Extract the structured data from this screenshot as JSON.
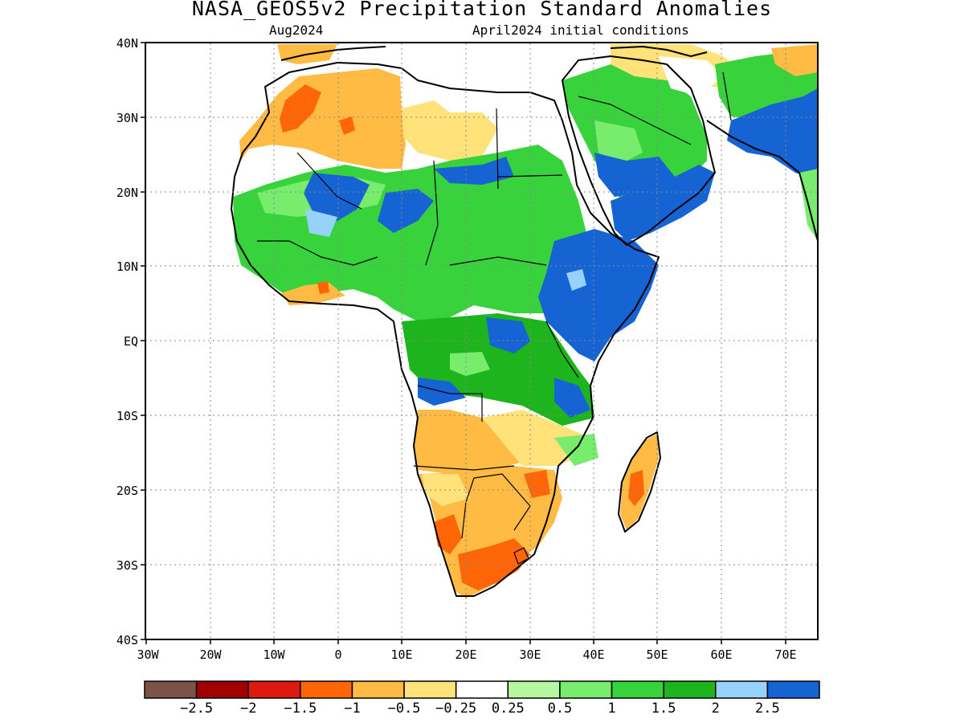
{
  "title": "NASA_GEOS5v2 Precipitation Standard Anomalies",
  "subtitle_left": "Aug2024",
  "subtitle_right": "April2024 initial conditions",
  "map": {
    "lat_labels": [
      "40N",
      "30N",
      "20N",
      "10N",
      "EQ",
      "10S",
      "20S",
      "30S",
      "40S"
    ],
    "lon_labels": [
      "30W",
      "20W",
      "10W",
      "0",
      "10E",
      "20E",
      "30E",
      "40E",
      "50E",
      "60E",
      "70E"
    ],
    "grid": "dotted",
    "region": "Africa, Middle East and South Asia (30W-75E, 40S-40N)"
  },
  "colorbar": {
    "colors": [
      "#7a5247",
      "#a00000",
      "#dd1a10",
      "#ff6608",
      "#ffbb44",
      "#ffe27a",
      "#ffffff",
      "#b5f7a0",
      "#78ec6c",
      "#37d23c",
      "#1eb41e",
      "#96d2fa",
      "#1664d4"
    ],
    "labels": [
      "−2.5",
      "−2",
      "−1.5",
      "−1",
      "−0.5",
      "−0.25",
      "0.25",
      "0.5",
      "1",
      "1.5",
      "2",
      "2.5"
    ]
  },
  "regions": {
    "north_africa": "dry",
    "sahel": "wet",
    "ethiopia_east_africa": "very wet",
    "arabian_peninsula_yemen": "very wet",
    "southern_africa": "dry",
    "madagascar": "dry",
    "india_pakistan": "very wet"
  }
}
